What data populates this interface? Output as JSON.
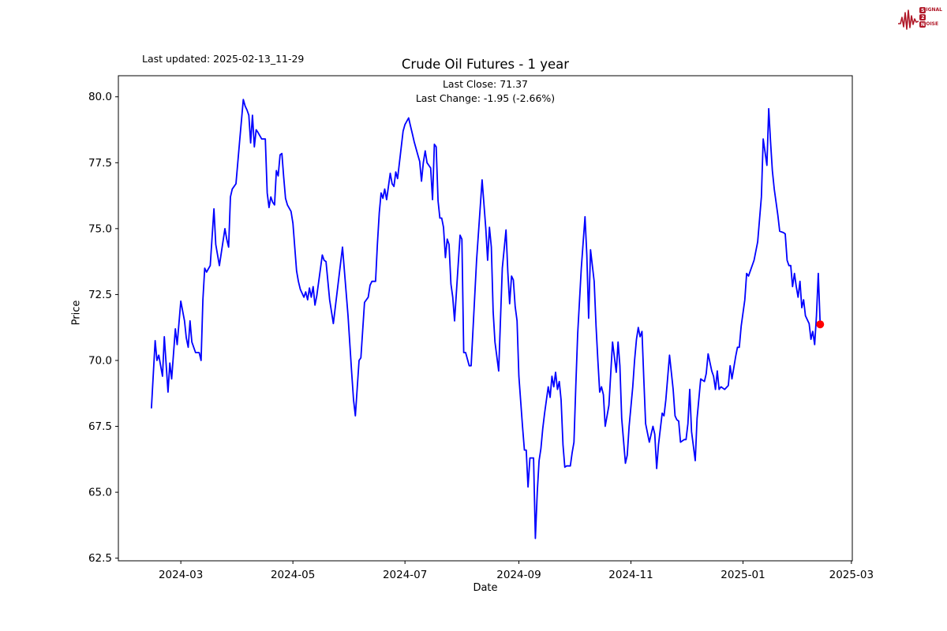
{
  "header": {
    "last_updated": "Last updated: 2025-02-13_11-29",
    "title": "Crude Oil Futures - 1 year",
    "last_close_line": "Last Close: 71.37",
    "last_change_line": "Last Change: -1.95 (-2.66%)"
  },
  "logo": {
    "color": "#b01828",
    "rows": [
      {
        "boxed": "S",
        "rest": "IGNAL"
      },
      {
        "boxed": "2",
        "rest": ""
      },
      {
        "boxed": "N",
        "rest": "OISE"
      }
    ]
  },
  "chart_data": {
    "type": "line",
    "title": "Crude Oil Futures - 1 year",
    "xlabel": "Date",
    "ylabel": "Price",
    "last_close": 71.37,
    "last_change": -1.95,
    "last_change_pct": -2.66,
    "grid": false,
    "line_color": "#0000ff",
    "line_width": 1.8,
    "end_marker": {
      "color": "#ff0000",
      "radius": 5,
      "x": 364,
      "y": 71.37
    },
    "x_unit": "days since 2024-02-14",
    "x_domain": [
      -18,
      381.5
    ],
    "y_domain": [
      62.4,
      80.8
    ],
    "x_ticks": [
      {
        "d": 16,
        "label": "2024-03"
      },
      {
        "d": 77,
        "label": "2024-05"
      },
      {
        "d": 138,
        "label": "2024-07"
      },
      {
        "d": 200,
        "label": "2024-09"
      },
      {
        "d": 261,
        "label": "2024-11"
      },
      {
        "d": 322,
        "label": "2025-01"
      },
      {
        "d": 381,
        "label": "2025-03"
      }
    ],
    "y_ticks": [
      62.5,
      65.0,
      67.5,
      70.0,
      72.5,
      75.0,
      77.5,
      80.0
    ],
    "series": [
      {
        "name": "Crude Oil Futures",
        "points": [
          [
            0,
            68.2
          ],
          [
            2,
            70.75
          ],
          [
            3,
            70.0
          ],
          [
            4,
            70.2
          ],
          [
            6,
            69.4
          ],
          [
            7,
            70.9
          ],
          [
            9,
            68.8
          ],
          [
            10,
            69.9
          ],
          [
            11,
            69.3
          ],
          [
            13,
            71.2
          ],
          [
            14,
            70.6
          ],
          [
            16,
            72.25
          ],
          [
            18,
            71.5
          ],
          [
            19,
            70.85
          ],
          [
            20,
            70.5
          ],
          [
            21,
            71.5
          ],
          [
            22,
            70.7
          ],
          [
            24,
            70.3
          ],
          [
            26,
            70.3
          ],
          [
            27,
            70.0
          ],
          [
            28,
            72.3
          ],
          [
            29,
            73.5
          ],
          [
            30,
            73.35
          ],
          [
            32,
            73.6
          ],
          [
            34,
            75.75
          ],
          [
            35,
            74.4
          ],
          [
            36,
            74.0
          ],
          [
            37,
            73.6
          ],
          [
            40,
            75.0
          ],
          [
            41,
            74.6
          ],
          [
            42,
            74.3
          ],
          [
            43,
            76.2
          ],
          [
            44,
            76.5
          ],
          [
            46,
            76.7
          ],
          [
            48,
            78.3
          ],
          [
            50,
            79.9
          ],
          [
            51,
            79.65
          ],
          [
            52,
            79.5
          ],
          [
            53,
            79.3
          ],
          [
            54,
            78.25
          ],
          [
            55,
            79.3
          ],
          [
            56,
            78.1
          ],
          [
            57,
            78.75
          ],
          [
            58,
            78.65
          ],
          [
            60,
            78.4
          ],
          [
            62,
            78.4
          ],
          [
            63,
            76.35
          ],
          [
            64,
            75.8
          ],
          [
            65,
            76.2
          ],
          [
            66,
            76.0
          ],
          [
            67,
            75.9
          ],
          [
            68,
            77.2
          ],
          [
            69,
            77.0
          ],
          [
            70,
            77.8
          ],
          [
            71,
            77.85
          ],
          [
            72,
            76.95
          ],
          [
            73,
            76.15
          ],
          [
            74,
            75.9
          ],
          [
            76,
            75.65
          ],
          [
            77,
            75.2
          ],
          [
            78,
            74.3
          ],
          [
            79,
            73.4
          ],
          [
            80,
            73.0
          ],
          [
            81,
            72.7
          ],
          [
            82,
            72.55
          ],
          [
            83,
            72.4
          ],
          [
            84,
            72.6
          ],
          [
            85,
            72.3
          ],
          [
            86,
            72.75
          ],
          [
            87,
            72.4
          ],
          [
            88,
            72.8
          ],
          [
            89,
            72.1
          ],
          [
            90,
            72.45
          ],
          [
            93,
            74.0
          ],
          [
            94,
            73.8
          ],
          [
            95,
            73.75
          ],
          [
            97,
            72.3
          ],
          [
            99,
            71.4
          ],
          [
            104,
            74.3
          ],
          [
            107,
            71.7
          ],
          [
            109,
            69.55
          ],
          [
            110,
            68.5
          ],
          [
            111,
            67.9
          ],
          [
            113,
            70.0
          ],
          [
            114,
            70.1
          ],
          [
            116,
            72.2
          ],
          [
            118,
            72.4
          ],
          [
            119,
            72.85
          ],
          [
            120,
            73.0
          ],
          [
            122,
            73.0
          ],
          [
            123,
            74.4
          ],
          [
            124,
            75.6
          ],
          [
            125,
            76.35
          ],
          [
            126,
            76.15
          ],
          [
            127,
            76.5
          ],
          [
            128,
            76.1
          ],
          [
            130,
            77.1
          ],
          [
            131,
            76.7
          ],
          [
            132,
            76.6
          ],
          [
            133,
            77.15
          ],
          [
            134,
            76.9
          ],
          [
            137,
            78.7
          ],
          [
            138,
            78.95
          ],
          [
            140,
            79.2
          ],
          [
            141,
            78.9
          ],
          [
            142,
            78.6
          ],
          [
            143,
            78.3
          ],
          [
            145,
            77.8
          ],
          [
            146,
            77.55
          ],
          [
            147,
            76.8
          ],
          [
            148,
            77.5
          ],
          [
            149,
            77.95
          ],
          [
            150,
            77.5
          ],
          [
            151,
            77.4
          ],
          [
            152,
            77.3
          ],
          [
            153,
            76.1
          ],
          [
            154,
            78.2
          ],
          [
            155,
            78.1
          ],
          [
            156,
            76.05
          ],
          [
            157,
            75.4
          ],
          [
            158,
            75.4
          ],
          [
            159,
            75.05
          ],
          [
            160,
            73.9
          ],
          [
            161,
            74.6
          ],
          [
            162,
            74.4
          ],
          [
            163,
            72.9
          ],
          [
            164,
            72.4
          ],
          [
            165,
            71.5
          ],
          [
            168,
            74.75
          ],
          [
            169,
            74.6
          ],
          [
            170,
            70.3
          ],
          [
            171,
            70.3
          ],
          [
            173,
            69.8
          ],
          [
            174,
            69.8
          ],
          [
            177,
            73.8
          ],
          [
            180,
            76.85
          ],
          [
            182,
            75.0
          ],
          [
            183,
            73.8
          ],
          [
            184,
            75.05
          ],
          [
            185,
            74.3
          ],
          [
            186,
            71.85
          ],
          [
            187,
            70.7
          ],
          [
            189,
            69.6
          ],
          [
            191,
            73.5
          ],
          [
            193,
            74.95
          ],
          [
            194,
            73.35
          ],
          [
            195,
            72.15
          ],
          [
            196,
            73.2
          ],
          [
            197,
            73.05
          ],
          [
            198,
            72.05
          ],
          [
            199,
            71.5
          ],
          [
            200,
            69.4
          ],
          [
            202,
            67.5
          ],
          [
            203,
            66.6
          ],
          [
            204,
            66.6
          ],
          [
            205,
            65.2
          ],
          [
            206,
            66.3
          ],
          [
            208,
            66.3
          ],
          [
            209,
            63.25
          ],
          [
            210,
            65.0
          ],
          [
            211,
            66.2
          ],
          [
            212,
            66.65
          ],
          [
            213,
            67.4
          ],
          [
            214,
            68.0
          ],
          [
            216,
            69.0
          ],
          [
            217,
            68.6
          ],
          [
            218,
            69.4
          ],
          [
            219,
            69.0
          ],
          [
            220,
            69.55
          ],
          [
            221,
            68.9
          ],
          [
            222,
            69.2
          ],
          [
            223,
            68.5
          ],
          [
            224,
            66.8
          ],
          [
            225,
            65.95
          ],
          [
            226,
            66.0
          ],
          [
            228,
            66.0
          ],
          [
            229,
            66.5
          ],
          [
            230,
            66.9
          ],
          [
            231,
            69.0
          ],
          [
            232,
            71.0
          ],
          [
            234,
            73.5
          ],
          [
            236,
            75.45
          ],
          [
            237,
            74.0
          ],
          [
            238,
            71.6
          ],
          [
            239,
            74.2
          ],
          [
            241,
            73.0
          ],
          [
            242,
            71.3
          ],
          [
            243,
            70.0
          ],
          [
            244,
            68.8
          ],
          [
            245,
            69.0
          ],
          [
            246,
            68.7
          ],
          [
            247,
            67.5
          ],
          [
            249,
            68.3
          ],
          [
            250,
            69.5
          ],
          [
            251,
            70.7
          ],
          [
            253,
            69.55
          ],
          [
            254,
            70.7
          ],
          [
            255,
            69.8
          ],
          [
            256,
            67.8
          ],
          [
            258,
            66.1
          ],
          [
            259,
            66.4
          ],
          [
            260,
            67.5
          ],
          [
            262,
            69.0
          ],
          [
            263,
            70.0
          ],
          [
            264,
            70.8
          ],
          [
            265,
            71.25
          ],
          [
            266,
            70.9
          ],
          [
            267,
            71.1
          ],
          [
            268,
            69.3
          ],
          [
            269,
            67.6
          ],
          [
            271,
            66.9
          ],
          [
            273,
            67.5
          ],
          [
            274,
            67.2
          ],
          [
            275,
            65.9
          ],
          [
            276,
            66.8
          ],
          [
            278,
            68.0
          ],
          [
            279,
            67.9
          ],
          [
            280,
            68.5
          ],
          [
            282,
            70.2
          ],
          [
            284,
            68.9
          ],
          [
            285,
            67.9
          ],
          [
            286,
            67.75
          ],
          [
            287,
            67.7
          ],
          [
            288,
            66.9
          ],
          [
            290,
            67.0
          ],
          [
            291,
            67.0
          ],
          [
            292,
            67.6
          ],
          [
            293,
            68.9
          ],
          [
            294,
            67.3
          ],
          [
            296,
            66.2
          ],
          [
            297,
            67.8
          ],
          [
            299,
            69.3
          ],
          [
            301,
            69.2
          ],
          [
            302,
            69.5
          ],
          [
            303,
            70.25
          ],
          [
            305,
            69.6
          ],
          [
            306,
            69.4
          ],
          [
            307,
            68.9
          ],
          [
            308,
            69.6
          ],
          [
            309,
            68.9
          ],
          [
            310,
            69.0
          ],
          [
            312,
            68.9
          ],
          [
            314,
            69.05
          ],
          [
            315,
            69.8
          ],
          [
            316,
            69.3
          ],
          [
            318,
            70.15
          ],
          [
            319,
            70.5
          ],
          [
            320,
            70.5
          ],
          [
            321,
            71.3
          ],
          [
            323,
            72.3
          ],
          [
            324,
            73.3
          ],
          [
            325,
            73.2
          ],
          [
            326,
            73.4
          ],
          [
            328,
            73.8
          ],
          [
            330,
            74.5
          ],
          [
            332,
            76.2
          ],
          [
            333,
            78.4
          ],
          [
            335,
            77.4
          ],
          [
            336,
            79.55
          ],
          [
            337,
            78.3
          ],
          [
            338,
            77.2
          ],
          [
            339,
            76.5
          ],
          [
            340,
            76.0
          ],
          [
            341,
            75.5
          ],
          [
            342,
            74.9
          ],
          [
            344,
            74.85
          ],
          [
            345,
            74.8
          ],
          [
            346,
            73.8
          ],
          [
            347,
            73.6
          ],
          [
            348,
            73.6
          ],
          [
            349,
            72.8
          ],
          [
            350,
            73.3
          ],
          [
            351,
            72.8
          ],
          [
            352,
            72.4
          ],
          [
            353,
            73.0
          ],
          [
            354,
            72.0
          ],
          [
            355,
            72.3
          ],
          [
            356,
            71.7
          ],
          [
            358,
            71.4
          ],
          [
            359,
            70.8
          ],
          [
            360,
            71.1
          ],
          [
            361,
            70.6
          ],
          [
            362,
            71.7
          ],
          [
            363,
            73.3
          ],
          [
            364,
            71.37
          ]
        ]
      }
    ]
  }
}
